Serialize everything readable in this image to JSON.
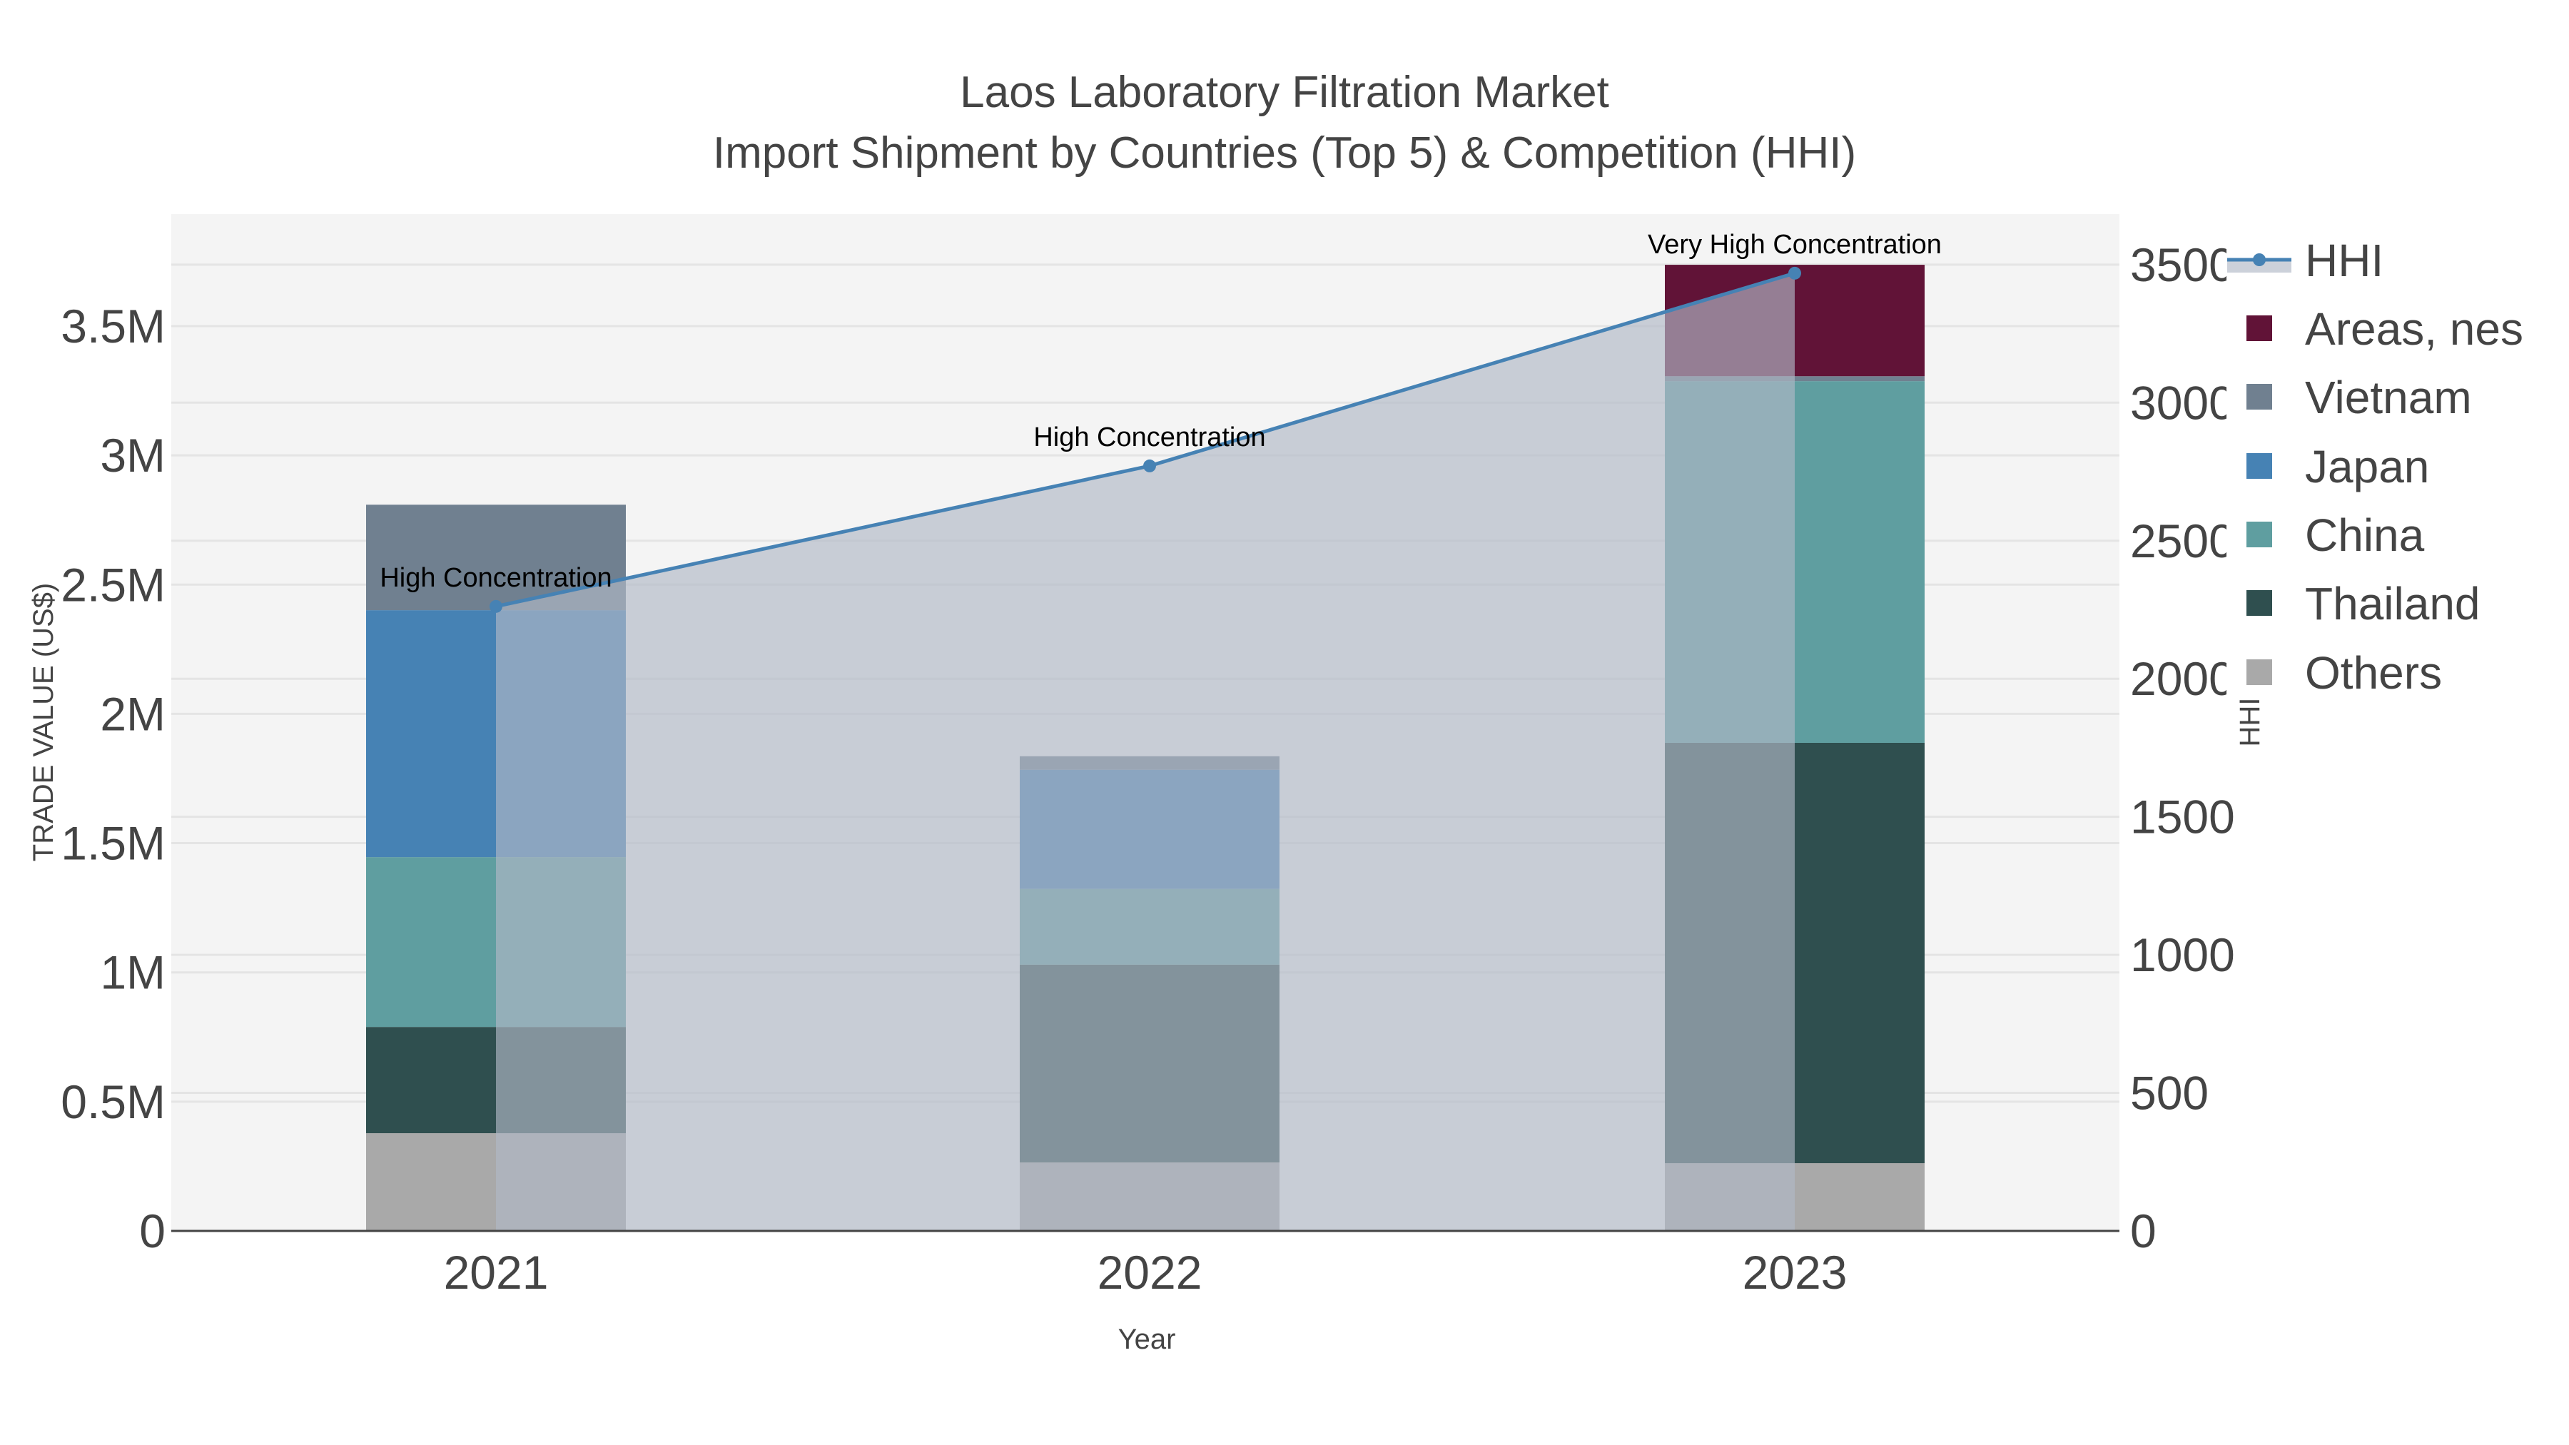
{
  "title": {
    "line1": "Laos Laboratory Filtration Market",
    "line2": "Import Shipment by Countries (Top 5) & Competition (HHI)"
  },
  "colors": {
    "plot_bg": "#f4f4f4",
    "grid": "#e4e4e4",
    "axis_line": "#444444",
    "hhi_line": "#4682b4",
    "hhi_fill": "rgba(176,184,198,0.65)",
    "Areas, nes": "#611337",
    "Vietnam": "#708090",
    "Japan": "#4682b4",
    "China": "#5f9ea0",
    "Thailand": "#2f4f4f",
    "Others": "#a9a9a9"
  },
  "axes": {
    "x_title": "Year",
    "y_left_title": "TRADE VALUE (US$)",
    "y_right_title": "HHI",
    "y_left_ticks": [
      "0",
      "0.5M",
      "1M",
      "1.5M",
      "2M",
      "2.5M",
      "3M",
      "3.5M"
    ],
    "y_right_ticks": [
      "0",
      "500",
      "1000",
      "1500",
      "2000",
      "2500",
      "3000",
      "3500"
    ],
    "x_ticks": [
      "2021",
      "2022",
      "2023"
    ]
  },
  "legend": [
    {
      "label": "HHI",
      "type": "line"
    },
    {
      "label": "Areas, nes",
      "type": "bar"
    },
    {
      "label": "Vietnam",
      "type": "bar"
    },
    {
      "label": "Japan",
      "type": "bar"
    },
    {
      "label": "China",
      "type": "bar"
    },
    {
      "label": "Thailand",
      "type": "bar"
    },
    {
      "label": "Others",
      "type": "bar"
    }
  ],
  "chart_data": {
    "type": "bar",
    "stacked": true,
    "title": "Laos Laboratory Filtration Market — Import Shipment by Countries (Top 5) & Competition (HHI)",
    "xlabel": "Year",
    "ylabel": "TRADE VALUE (US$)",
    "y2label": "HHI",
    "categories": [
      "2021",
      "2022",
      "2023"
    ],
    "ylim": [
      0,
      3900000
    ],
    "y2lim": [
      0,
      3680
    ],
    "grid": true,
    "legend_position": "right",
    "series": [
      {
        "name": "Others",
        "values": [
          378000,
          265000,
          262000
        ]
      },
      {
        "name": "Thailand",
        "values": [
          411000,
          765000,
          1626000
        ]
      },
      {
        "name": "China",
        "values": [
          657000,
          293000,
          1399000
        ]
      },
      {
        "name": "Japan",
        "values": [
          955000,
          461000,
          0
        ]
      },
      {
        "name": "Vietnam",
        "values": [
          408000,
          52000,
          19000
        ]
      },
      {
        "name": "Areas, nes",
        "values": [
          0,
          0,
          431000
        ]
      }
    ],
    "line_series": {
      "name": "HHI",
      "axis": "right",
      "values": [
        2262,
        2771,
        3469
      ],
      "annotations": [
        "High Concentration",
        "High Concentration",
        "Very High Concentration"
      ]
    }
  }
}
